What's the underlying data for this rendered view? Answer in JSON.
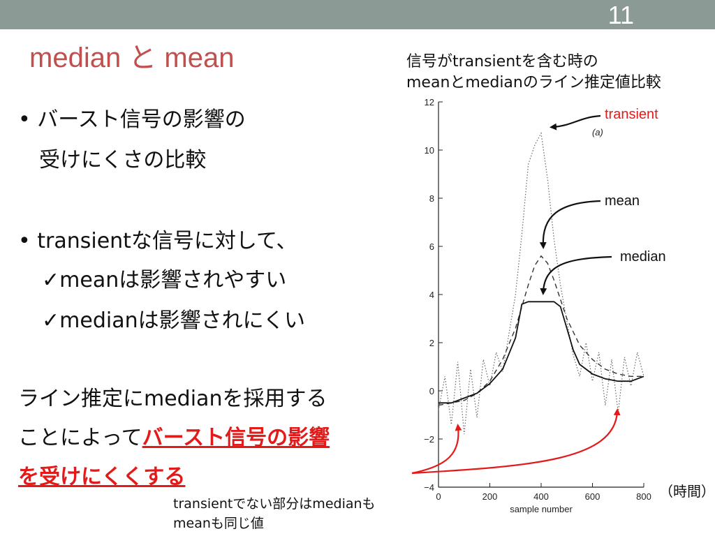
{
  "slide": {
    "page_number": "11",
    "title": "median と mean",
    "chart_caption_line1": "信号がtransientを含む時の",
    "chart_caption_line2": "meanとmedianのライン推定値比較",
    "bullets": [
      {
        "text": "• バースト信号の影響の"
      },
      {
        "text": "受けにくさの比較"
      },
      {
        "text": "• transientな信号に対して、"
      },
      {
        "text": "✓meanは影響されやすい"
      },
      {
        "text": "✓medianは影響されにくい"
      }
    ],
    "conclusion_line1": "ライン推定にmedianを採用する",
    "conclusion_line2_plain": "ことによって",
    "conclusion_line2_highlight": "バースト信号の影響",
    "conclusion_line3_highlight": "を受けにくくする",
    "footnote_line1": "transientでない部分はmedianも",
    "footnote_line2": "meanも同じ値",
    "time_label": "（時間）",
    "colors": {
      "topbar": "#8c9a95",
      "title": "#c0504d",
      "highlight": "#e31a1a"
    }
  },
  "chart_data": {
    "type": "line",
    "panel_label": "(a)",
    "xlabel": "sample number",
    "ylabel": "",
    "xlim": [
      0,
      800
    ],
    "ylim": [
      -4,
      12
    ],
    "xticks": [
      0,
      200,
      400,
      600,
      800
    ],
    "yticks": [
      -4,
      -2,
      0,
      2,
      4,
      6,
      8,
      10,
      12
    ],
    "annotations": [
      {
        "text": "transient",
        "color": "#e31a1a"
      },
      {
        "text": "mean",
        "color": "#111111"
      },
      {
        "text": "median",
        "color": "#111111"
      }
    ],
    "series": [
      {
        "style": "dotted",
        "x": [
          0,
          25,
          50,
          75,
          100,
          125,
          150,
          175,
          200,
          225,
          250,
          275,
          300,
          325,
          350,
          375,
          400,
          425,
          450,
          475,
          500,
          525,
          550,
          575,
          600,
          625,
          650,
          675,
          700,
          725,
          750,
          775,
          800
        ],
        "y": [
          -0.8,
          0.6,
          -1.4,
          1.2,
          -1.8,
          0.9,
          -1.1,
          1.3,
          0.2,
          1.6,
          0.8,
          2.4,
          4.0,
          6.5,
          9.4,
          10.2,
          10.7,
          8.8,
          6.3,
          4.4,
          2.9,
          1.5,
          0.6,
          2.0,
          0.4,
          1.6,
          -0.6,
          1.3,
          -0.9,
          1.4,
          0.2,
          1.6,
          0.6
        ]
      },
      {
        "style": "dashed",
        "x": [
          0,
          50,
          100,
          150,
          200,
          250,
          300,
          350,
          375,
          400,
          425,
          450,
          500,
          550,
          600,
          650,
          700,
          750,
          800
        ],
        "y": [
          -0.6,
          -0.5,
          -0.4,
          -0.1,
          0.4,
          1.3,
          2.6,
          4.4,
          5.2,
          5.6,
          5.3,
          4.6,
          3.0,
          1.9,
          1.3,
          0.9,
          0.7,
          0.6,
          0.6
        ]
      },
      {
        "style": "solid",
        "x": [
          0,
          50,
          100,
          150,
          200,
          250,
          300,
          325,
          350,
          400,
          450,
          475,
          500,
          525,
          550,
          600,
          650,
          700,
          750,
          800
        ],
        "y": [
          -0.5,
          -0.5,
          -0.3,
          -0.1,
          0.3,
          0.9,
          2.2,
          3.6,
          3.7,
          3.7,
          3.7,
          3.5,
          2.6,
          1.7,
          1.1,
          0.7,
          0.5,
          0.4,
          0.4,
          0.6
        ]
      }
    ]
  }
}
